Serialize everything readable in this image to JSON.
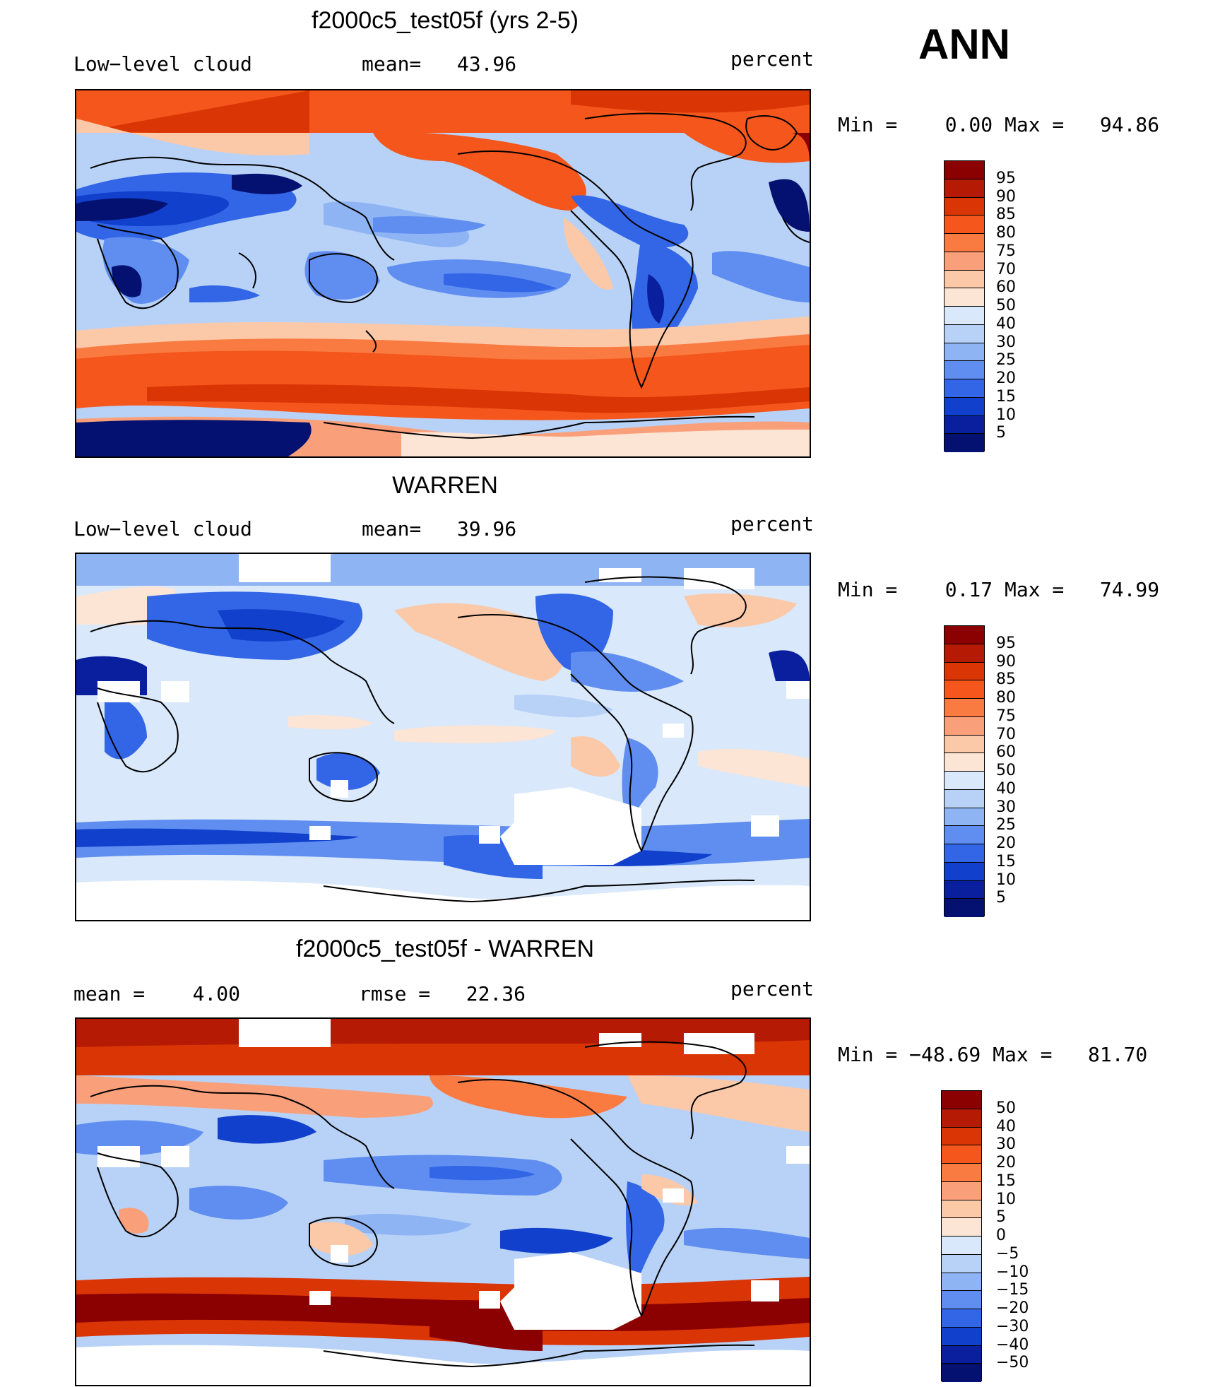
{
  "season": "ANN",
  "levels_top": [
    "95",
    "90",
    "85",
    "80",
    "75",
    "70",
    "60",
    "50",
    "40",
    "30",
    "25",
    "20",
    "15",
    "10",
    "5"
  ],
  "levels_diff": [
    "50",
    "40",
    "30",
    "20",
    "15",
    "10",
    "5",
    "0",
    "−5",
    "−10",
    "−15",
    "−20",
    "−30",
    "−40",
    "−50"
  ],
  "colors": [
    "#8b0000",
    "#b51a04",
    "#da3505",
    "#f4561b",
    "#fa7b42",
    "#f9a07b",
    "#fbc8a8",
    "#fde5d5",
    "#d9e8fa",
    "#b8d2f7",
    "#8fb4f4",
    "#5f8ef0",
    "#3266e6",
    "#1040cc",
    "#0a1f9e",
    "#051170"
  ],
  "coast_color": "#000000",
  "panels": [
    {
      "title": "f2000c5_test05f (yrs 2-5)",
      "left": "Low−level cloud",
      "mid": "mean=   43.96",
      "right": "percent",
      "minmax": "Min =    0.00 Max =   94.86"
    },
    {
      "title": "WARREN",
      "left": "Low−level cloud",
      "mid": "mean=   39.96",
      "right": "percent",
      "minmax": "Min =    0.17 Max =   74.99"
    },
    {
      "title": "f2000c5_test05f - WARREN",
      "left": "mean =    4.00",
      "mid": "rmse =   22.36",
      "right": "percent",
      "minmax": "Min = −48.69 Max =   81.70"
    }
  ]
}
